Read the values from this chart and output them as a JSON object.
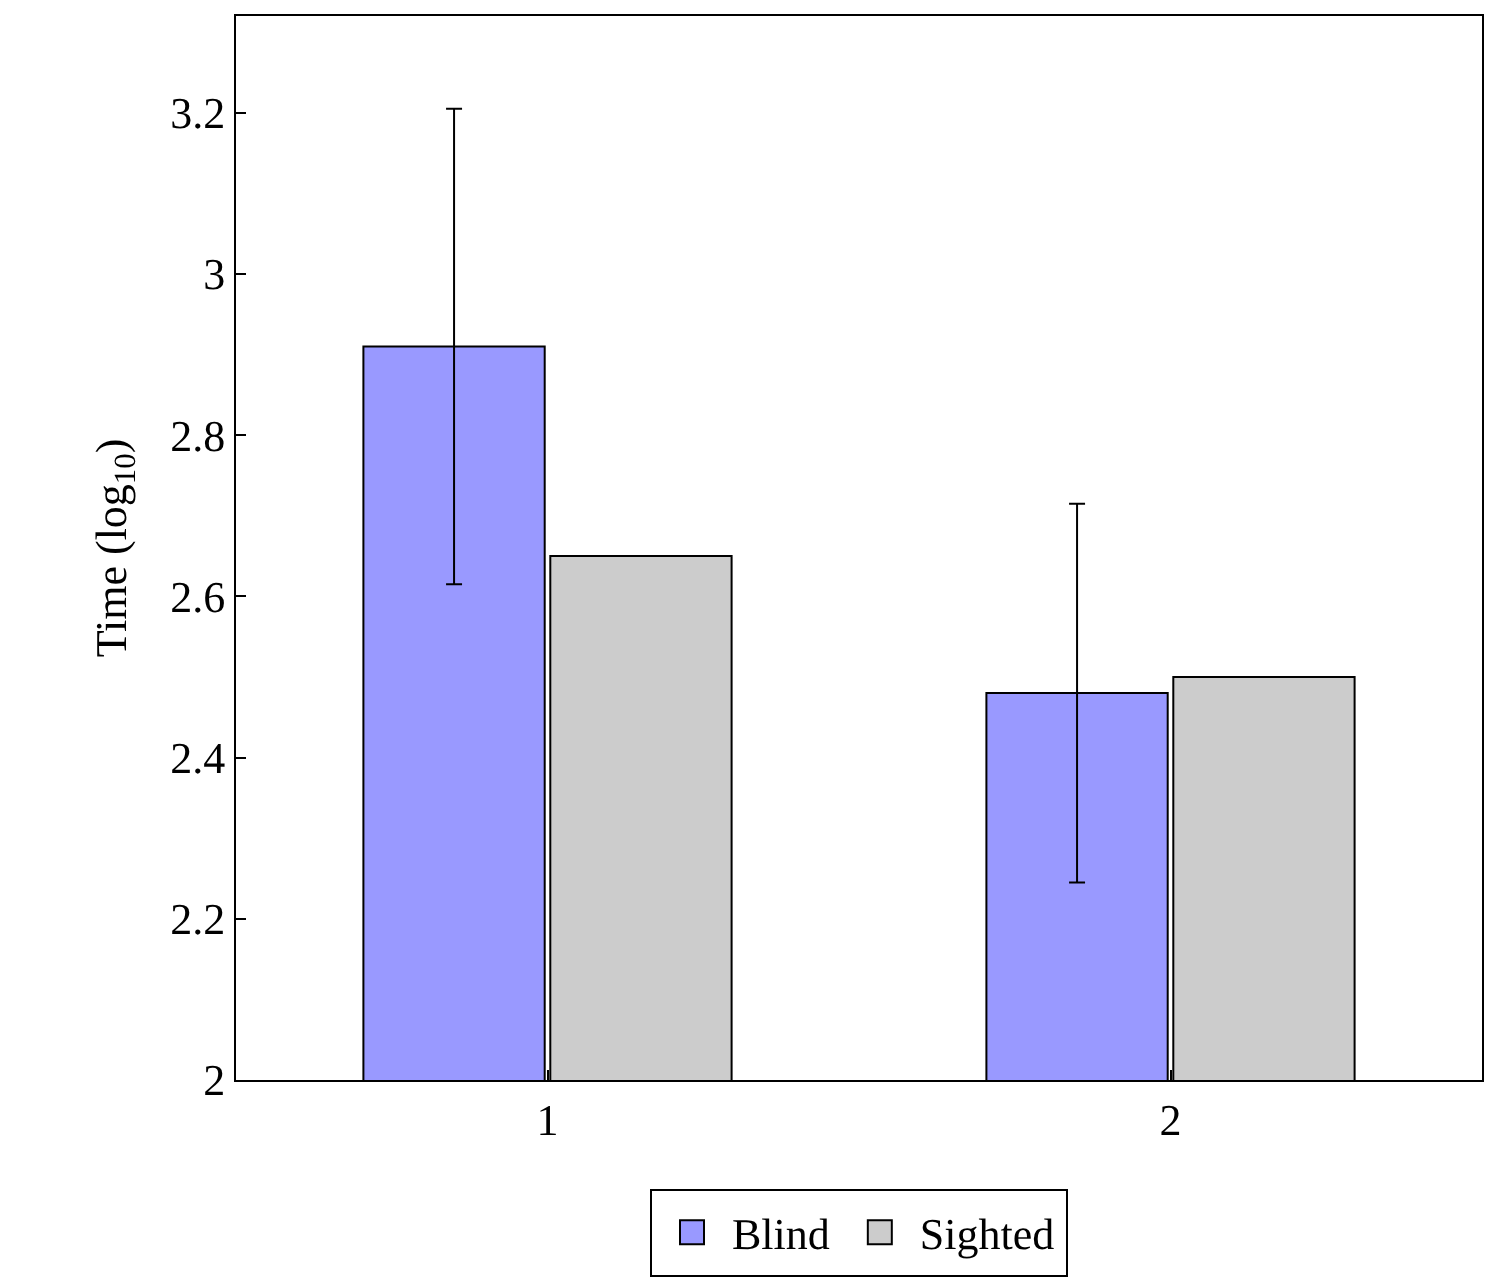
{
  "chart_data": {
    "type": "bar",
    "ylabel": "Time (log$_{10}$)",
    "categories": [
      "1",
      "2"
    ],
    "series": [
      {
        "name": "Blind",
        "color": "#9999ff",
        "values": [
          2.91,
          2.48
        ],
        "errors": [
          0.295,
          0.235
        ]
      },
      {
        "name": "Sighted",
        "color": "#cccccc",
        "values": [
          2.65,
          2.5
        ]
      }
    ],
    "ylim": [
      2,
      3.32
    ],
    "yticks": [
      2,
      2.2,
      2.4,
      2.6,
      2.8,
      3,
      3.2
    ],
    "legend": "bottom"
  }
}
